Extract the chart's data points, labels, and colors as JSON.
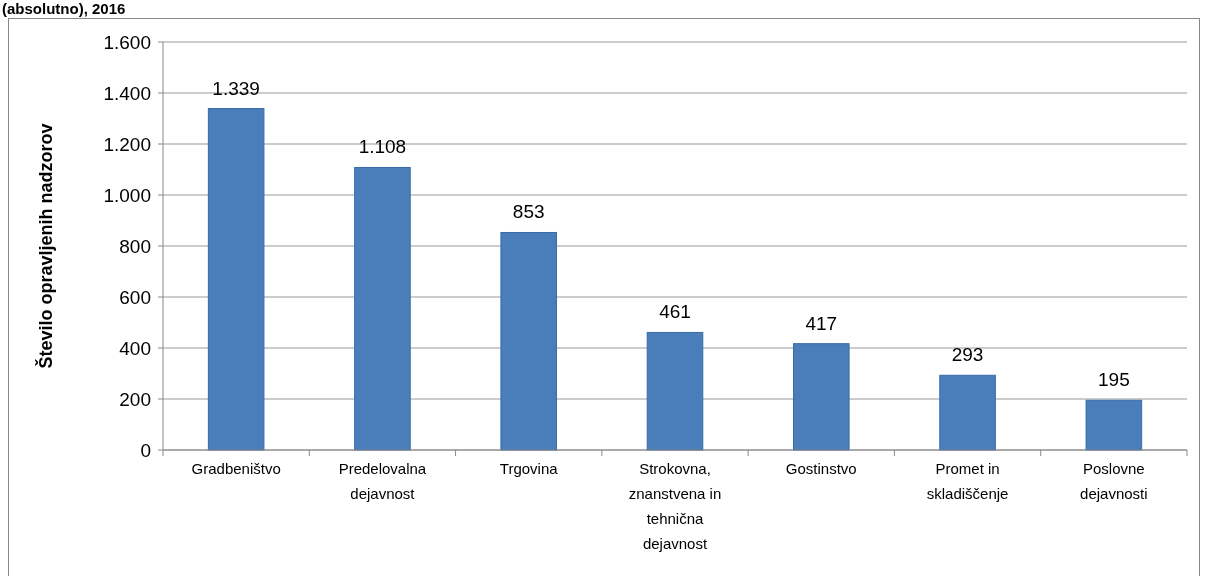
{
  "chart_data": {
    "type": "bar",
    "title": "(absolutno), 2016",
    "ylabel": "Število opravljenih nadzorov",
    "categories": [
      "Gradbeništvo",
      "Predelovalna dejavnost",
      "Trgovina",
      "Strokovna, znanstvena in tehnična dejavnost",
      "Gostinstvo",
      "Promet in skladiščenje",
      "Poslovne dejavnosti"
    ],
    "values": [
      1339,
      1108,
      853,
      461,
      417,
      293,
      195
    ],
    "value_labels": [
      "1.339",
      "1.108",
      "853",
      "461",
      "417",
      "293",
      "195"
    ],
    "color": "#4a7ebb",
    "ylim": [
      0,
      1600
    ],
    "yticks": [
      0,
      200,
      400,
      600,
      800,
      {
        "value": 1000,
        "label": "1.000"
      },
      {
        "value": 1200,
        "label": "1.200"
      },
      {
        "value": 1400,
        "label": "1.400"
      },
      {
        "value": 1600,
        "label": "1.600"
      }
    ],
    "grid": "y"
  }
}
